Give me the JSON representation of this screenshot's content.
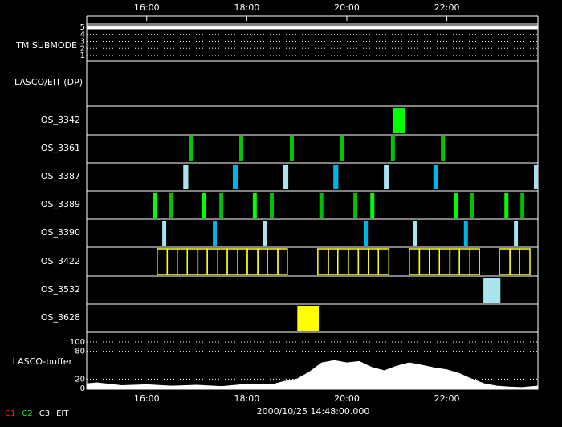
{
  "chart_data": {
    "type": "timeline",
    "xlim": [
      14.8,
      23.82
    ],
    "xticks": [
      {
        "value": 16,
        "label": "16:00"
      },
      {
        "value": 18,
        "label": "18:00"
      },
      {
        "value": 20,
        "label": "20:00"
      },
      {
        "value": 22,
        "label": "22:00"
      }
    ],
    "rows": [
      {
        "name": "TM SUBMODE",
        "ylim": [
          1,
          5
        ],
        "yticks": [
          1,
          2,
          3,
          4,
          5
        ],
        "x": [
          14.8,
          23.82
        ],
        "values": [
          5,
          5
        ],
        "color": "#ffffff"
      },
      {
        "name": "LASCO/EIT (DP)"
      },
      {
        "name": "OS_3342",
        "starts": [
          20.92
        ],
        "ends": [
          21.17
        ],
        "color": "#00ff00"
      },
      {
        "name": "OS_3361",
        "starts": [
          16.84,
          17.85,
          18.86,
          19.87,
          20.88,
          21.88
        ],
        "ends": [
          16.92,
          17.93,
          18.94,
          19.95,
          20.96,
          21.96
        ],
        "color": "#00c800"
      },
      {
        "name": "OS_3387",
        "starts": [
          16.73,
          17.72,
          18.73,
          19.73,
          20.74,
          21.73,
          23.74
        ],
        "ends": [
          16.83,
          17.82,
          18.83,
          19.83,
          20.84,
          21.83,
          23.82
        ],
        "colors": [
          "#a8e4f0",
          "#00b4e6",
          "#a8e4f0",
          "#00b4e6",
          "#a8e4f0",
          "#00b4e6",
          "#a8e4f0"
        ]
      },
      {
        "name": "OS_3389",
        "starts": [
          16.12,
          16.45,
          17.11,
          17.45,
          18.12,
          18.46,
          19.45,
          20.13,
          20.47,
          22.14,
          22.47,
          23.15,
          23.47
        ],
        "ends": [
          16.2,
          16.53,
          17.19,
          17.53,
          18.2,
          18.54,
          19.53,
          20.21,
          20.55,
          22.22,
          22.55,
          23.23,
          23.55
        ],
        "colors": [
          "#00ff00",
          "#00c000",
          "#00ff00",
          "#00c000",
          "#00ff00",
          "#00c000",
          "#00c000",
          "#00c000",
          "#00ff00",
          "#00ff00",
          "#00c000",
          "#00ff00",
          "#00c000"
        ]
      },
      {
        "name": "OS_3390",
        "starts": [
          16.31,
          17.32,
          18.33,
          20.34,
          21.33,
          22.34,
          23.34
        ],
        "ends": [
          16.39,
          17.4,
          18.41,
          20.42,
          21.41,
          22.42,
          23.42
        ],
        "colors": [
          "#a8e4f0",
          "#00b4e6",
          "#a8e4f0",
          "#00b4e6",
          "#a8e4f0",
          "#00b4e6",
          "#a8e4f0"
        ]
      },
      {
        "name": "OS_3422",
        "starts": [
          16.21,
          16.41,
          16.61,
          16.81,
          17.02,
          17.21,
          17.42,
          17.61,
          17.82,
          18.01,
          18.22,
          18.41,
          18.62,
          19.42,
          19.63,
          19.82,
          20.03,
          20.23,
          20.43,
          20.63,
          21.25,
          21.45,
          21.65,
          21.85,
          22.06,
          22.25,
          22.46,
          23.05,
          23.26,
          23.45
        ],
        "ends": [
          16.41,
          16.61,
          16.81,
          17.02,
          17.21,
          17.42,
          17.61,
          17.82,
          18.01,
          18.22,
          18.41,
          18.62,
          18.81,
          19.63,
          19.82,
          20.03,
          20.23,
          20.43,
          20.63,
          20.84,
          21.45,
          21.65,
          21.85,
          22.06,
          22.25,
          22.46,
          22.65,
          23.26,
          23.45,
          23.66
        ],
        "color": "#ffff00"
      },
      {
        "name": "OS_3532",
        "starts": [
          22.73
        ],
        "ends": [
          23.07
        ],
        "color": "#a8e4f0"
      },
      {
        "name": "OS_3628",
        "starts": [
          19.01
        ],
        "ends": [
          19.44
        ],
        "color": "#ffff00"
      },
      {
        "name": "LASCO-buffer",
        "ylim": [
          0,
          100
        ],
        "yticks": [
          0,
          20,
          80,
          100
        ],
        "x": [
          14.8,
          15,
          15.5,
          16,
          16.5,
          17,
          17.5,
          18,
          18.5,
          18.75,
          19,
          19.25,
          19.5,
          19.75,
          20,
          20.25,
          20.5,
          20.75,
          21,
          21.25,
          21.5,
          21.75,
          22,
          22.25,
          22.5,
          22.75,
          23,
          23.25,
          23.5,
          23.82
        ],
        "values": [
          10,
          12,
          6,
          8,
          5,
          7,
          4,
          9,
          8,
          15,
          20,
          35,
          55,
          60,
          55,
          58,
          45,
          38,
          48,
          55,
          50,
          44,
          40,
          32,
          20,
          10,
          5,
          3,
          2,
          5
        ],
        "color": "#ffffff"
      }
    ],
    "legend": [
      {
        "name": "C1",
        "color": "#ff2020"
      },
      {
        "name": "C2",
        "color": "#20e020"
      },
      {
        "name": "C3",
        "color": "#ffffff"
      },
      {
        "name": "EIT",
        "color": "#ffffff"
      }
    ],
    "date": "2000/10/25 14:48:00.000"
  }
}
